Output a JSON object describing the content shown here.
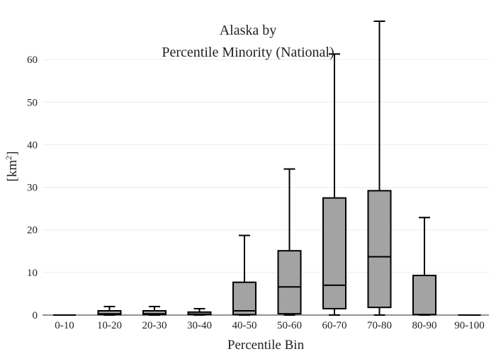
{
  "chart_data": {
    "type": "box",
    "title": "Alaska  by",
    "subtitle": "Percentile Minority (National)",
    "xlabel": "Percentile Bin",
    "ylabel": "[km",
    "ylabel_sup": "2",
    "ylabel_close": "]",
    "ylim": [
      0,
      69
    ],
    "yticks": [
      0,
      10,
      20,
      30,
      40,
      50,
      60
    ],
    "grid": true,
    "categories": [
      "0-10",
      "10-20",
      "20-30",
      "30-40",
      "40-50",
      "50-60",
      "60-70",
      "70-80",
      "80-90",
      "90-100"
    ],
    "boxes": [
      {
        "category": "0-10",
        "min": 0,
        "q1": 0,
        "median": 0,
        "q3": 0,
        "max": 0
      },
      {
        "category": "10-20",
        "min": 0,
        "q1": 0.1,
        "median": 0.3,
        "q3": 1.0,
        "max": 2.0
      },
      {
        "category": "20-30",
        "min": 0,
        "q1": 0.1,
        "median": 0.3,
        "q3": 1.0,
        "max": 2.0
      },
      {
        "category": "30-40",
        "min": 0,
        "q1": 0.1,
        "median": 0.2,
        "q3": 0.7,
        "max": 1.5
      },
      {
        "category": "40-50",
        "min": 0,
        "q1": 0.1,
        "median": 1.0,
        "q3": 7.7,
        "max": 18.7
      },
      {
        "category": "50-60",
        "min": 0,
        "q1": 0.3,
        "median": 6.6,
        "q3": 15.1,
        "max": 34.3
      },
      {
        "category": "60-70",
        "min": 0,
        "q1": 1.5,
        "median": 7.0,
        "q3": 27.5,
        "max": 61.3
      },
      {
        "category": "70-80",
        "min": 0,
        "q1": 1.8,
        "median": 13.7,
        "q3": 29.2,
        "max": 69.0
      },
      {
        "category": "80-90",
        "min": 0,
        "q1": 0.1,
        "median": 0.1,
        "q3": 9.3,
        "max": 22.9
      },
      {
        "category": "90-100",
        "min": 0,
        "q1": 0,
        "median": 0,
        "q3": 0,
        "max": 0
      }
    ],
    "colors": {
      "box_fill": "#a3a3a3",
      "stroke": "#000000",
      "grid": "#ececec"
    }
  }
}
